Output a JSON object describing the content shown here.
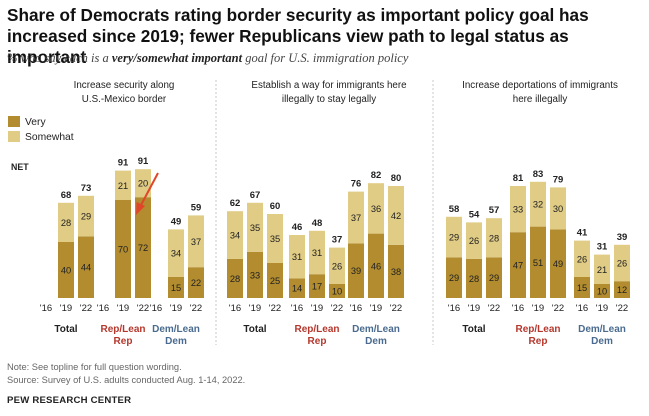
{
  "title": "Share of Democrats rating border security as important policy goal has increased since 2019; fewer Republicans view path to legal status as important",
  "subtitle": {
    "before": "% who say each is a ",
    "emphasis": "very/somewhat important",
    "after": " goal for U.S. immigration policy"
  },
  "colors": {
    "very": "#b28c2e",
    "somewhat": "#e0cc85",
    "rep": "#b5372c",
    "dem": "#4a6b8f",
    "text": "#222222",
    "divider": "#c8c8c8"
  },
  "chart_data": {
    "type": "bar",
    "stacked": true,
    "legend": {
      "placement": "top-left",
      "entries": [
        "Very",
        "Somewhat"
      ]
    },
    "net_label": "NET",
    "years": [
      "'16",
      "'19",
      "'22"
    ],
    "panels": [
      {
        "title_lines": [
          "Increase security along",
          "U.S.-Mexico border"
        ],
        "groups": [
          {
            "label_lines": [
              "Total"
            ],
            "party": "total",
            "bars": [
              null,
              {
                "very": 40,
                "somewhat": 28,
                "net": 68
              },
              {
                "very": 44,
                "somewhat": 29,
                "net": 73
              }
            ]
          },
          {
            "label_lines": [
              "Rep/Lean",
              "Rep"
            ],
            "party": "rep",
            "bars": [
              null,
              {
                "very": 70,
                "somewhat": 21,
                "net": 91
              },
              {
                "very": 72,
                "somewhat": 20,
                "net": 91
              }
            ]
          },
          {
            "label_lines": [
              "Dem/Lean",
              "Dem"
            ],
            "party": "dem",
            "bars": [
              null,
              {
                "very": 15,
                "somewhat": 34,
                "net": 49
              },
              {
                "very": 22,
                "somewhat": 37,
                "net": 59
              }
            ]
          }
        ]
      },
      {
        "title_lines": [
          "Establish a way for immigrants here",
          "illegally to stay legally"
        ],
        "groups": [
          {
            "label_lines": [
              "Total"
            ],
            "party": "total",
            "bars": [
              {
                "very": 28,
                "somewhat": 34,
                "net": 62
              },
              {
                "very": 33,
                "somewhat": 35,
                "net": 67
              },
              {
                "very": 25,
                "somewhat": 35,
                "net": 60
              }
            ]
          },
          {
            "label_lines": [
              "Rep/Lean",
              "Rep"
            ],
            "party": "rep",
            "bars": [
              {
                "very": 14,
                "somewhat": 31,
                "net": 46
              },
              {
                "very": 17,
                "somewhat": 31,
                "net": 48
              },
              {
                "very": 10,
                "somewhat": 26,
                "net": 37
              }
            ]
          },
          {
            "label_lines": [
              "Dem/Lean",
              "Dem"
            ],
            "party": "dem",
            "bars": [
              {
                "very": 39,
                "somewhat": 37,
                "net": 76
              },
              {
                "very": 46,
                "somewhat": 36,
                "net": 82
              },
              {
                "very": 38,
                "somewhat": 42,
                "net": 80
              }
            ]
          }
        ]
      },
      {
        "title_lines": [
          "Increase deportations of immigrants",
          "here illegally"
        ],
        "groups": [
          {
            "label_lines": [
              "Total"
            ],
            "party": "total",
            "bars": [
              {
                "very": 29,
                "somewhat": 29,
                "net": 58
              },
              {
                "very": 28,
                "somewhat": 26,
                "net": 54
              },
              {
                "very": 29,
                "somewhat": 28,
                "net": 57
              }
            ]
          },
          {
            "label_lines": [
              "Rep/Lean",
              "Rep"
            ],
            "party": "rep",
            "bars": [
              {
                "very": 47,
                "somewhat": 33,
                "net": 81
              },
              {
                "very": 51,
                "somewhat": 32,
                "net": 83
              },
              {
                "very": 49,
                "somewhat": 30,
                "net": 79
              }
            ]
          },
          {
            "label_lines": [
              "Dem/Lean",
              "Dem"
            ],
            "party": "dem",
            "bars": [
              {
                "very": 15,
                "somewhat": 26,
                "net": 41
              },
              {
                "very": 10,
                "somewhat": 21,
                "net": 31
              },
              {
                "very": 12,
                "somewhat": 26,
                "net": 39
              }
            ]
          }
        ]
      }
    ],
    "annotation": {
      "shape": "arrow",
      "color": "#e0462a",
      "points_to": "Rep/Lean Rep '22, Increase security along U.S.-Mexico border"
    }
  },
  "footer": {
    "note": "Note: See topline for full question wording.",
    "source": "Source: Survey of U.S. adults conducted Aug. 1-14, 2022.",
    "brand": "PEW RESEARCH CENTER"
  }
}
